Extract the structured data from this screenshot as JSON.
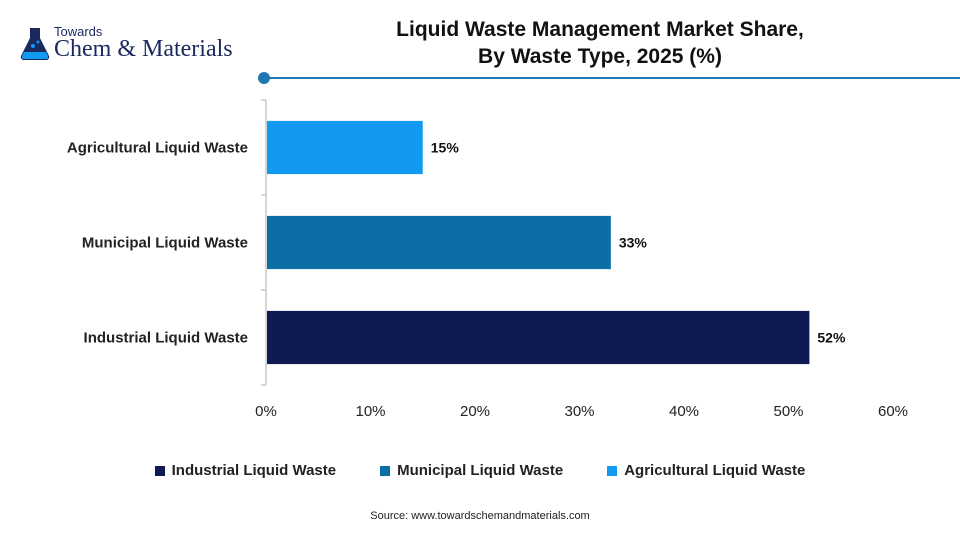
{
  "brand": {
    "line1": "Towards",
    "line2": "Chem & Materials"
  },
  "title_lines": [
    "Liquid Waste Management Market Share,",
    "By Waste Type, 2025 (%)"
  ],
  "source": "Source: www.towardschemandmaterials.com",
  "colors": {
    "accent": "#1f78b4",
    "industrial": "#0f1a52",
    "municipal": "#0b6ea5",
    "agricultural": "#129af0"
  },
  "chart_data": {
    "type": "bar",
    "orientation": "horizontal",
    "categories": [
      "Agricultural Liquid Waste",
      "Municipal Liquid Waste",
      "Industrial Liquid Waste"
    ],
    "values": [
      15,
      33,
      52
    ],
    "value_labels": [
      "15%",
      "33%",
      "52%"
    ],
    "bar_colors": [
      "#129af0",
      "#0b6ea5",
      "#0f1a52"
    ],
    "xlim": [
      0,
      60
    ],
    "x_ticks": [
      0,
      10,
      20,
      30,
      40,
      50,
      60
    ],
    "x_tick_labels": [
      "0%",
      "10%",
      "20%",
      "30%",
      "40%",
      "50%",
      "60%"
    ],
    "grid": false,
    "legend_position": "bottom",
    "legend": [
      {
        "label": "Industrial Liquid Waste",
        "color": "#0f1a52"
      },
      {
        "label": "Municipal Liquid Waste",
        "color": "#0b6ea5"
      },
      {
        "label": "Agricultural Liquid Waste",
        "color": "#129af0"
      }
    ]
  }
}
